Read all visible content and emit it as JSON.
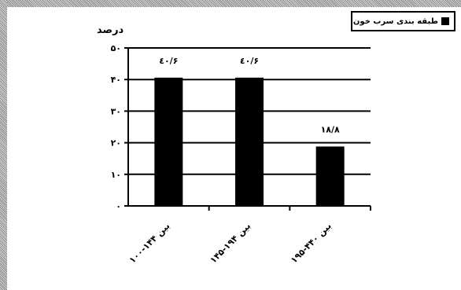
{
  "chart_data": {
    "type": "bar",
    "ylabel": "درصد",
    "categories": [
      "بین ۱۴۴-۱۰۰",
      "بین ۱۹۴-۱۴۵",
      "بین ۴۴۰-۱۹۵"
    ],
    "series": [
      {
        "name": "طبقه بندی سرب خون",
        "values": [
          40.6,
          40.6,
          18.8
        ],
        "data_labels": [
          "٤٠/۶",
          "٤٠/۶",
          "۱۸/۸"
        ]
      }
    ],
    "yticks": [
      0,
      10,
      20,
      30,
      40,
      50
    ],
    "ytick_labels": [
      "۰",
      "۱۰",
      "۲۰",
      "۳۰",
      "۴۰",
      "۵۰"
    ],
    "ylim": [
      0,
      50
    ],
    "grid": true,
    "legend_position": "top-right",
    "bar_color": "#000000"
  }
}
